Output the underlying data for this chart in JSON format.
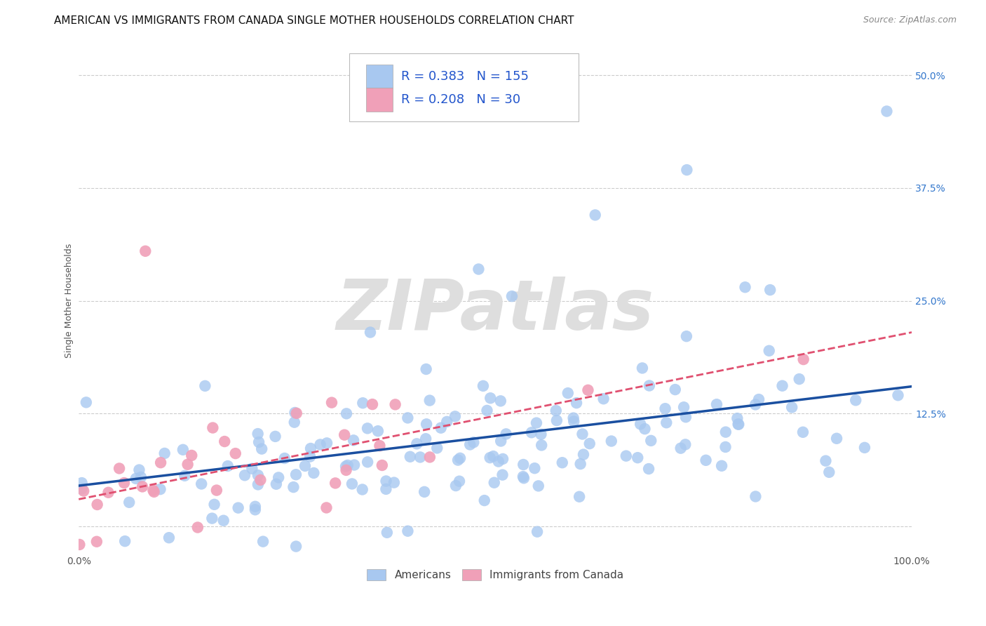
{
  "title": "AMERICAN VS IMMIGRANTS FROM CANADA SINGLE MOTHER HOUSEHOLDS CORRELATION CHART",
  "source": "Source: ZipAtlas.com",
  "ylabel": "Single Mother Households",
  "xlabel": "",
  "watermark": "ZIPatlas",
  "legend_blue_r": "0.383",
  "legend_blue_n": "155",
  "legend_pink_r": "0.208",
  "legend_pink_n": "30",
  "legend_blue_label": "Americans",
  "legend_pink_label": "Immigrants from Canada",
  "xlim": [
    0.0,
    1.0
  ],
  "ylim": [
    -0.03,
    0.53
  ],
  "xticks": [
    0.0,
    0.25,
    0.5,
    0.75,
    1.0
  ],
  "xticklabels": [
    "0.0%",
    "",
    "",
    "",
    "100.0%"
  ],
  "yticks": [
    0.0,
    0.125,
    0.25,
    0.375,
    0.5
  ],
  "yticklabels": [
    "",
    "12.5%",
    "25.0%",
    "37.5%",
    "50.0%"
  ],
  "background_color": "#ffffff",
  "grid_color": "#cccccc",
  "blue_color": "#a8c8f0",
  "pink_color": "#f0a0b8",
  "blue_line_color": "#1a4fa0",
  "pink_line_color": "#e05070",
  "title_fontsize": 11,
  "source_fontsize": 9,
  "axis_label_fontsize": 9,
  "tick_fontsize": 10,
  "watermark_color": "#dedede",
  "n_blue": 155,
  "n_pink": 30,
  "r_blue": 0.383,
  "r_pink": 0.208,
  "blue_line_x0": 0.0,
  "blue_line_y0": 0.045,
  "blue_line_x1": 1.0,
  "blue_line_y1": 0.155,
  "pink_line_x0": 0.0,
  "pink_line_y0": 0.03,
  "pink_line_x1": 1.0,
  "pink_line_y1": 0.215
}
